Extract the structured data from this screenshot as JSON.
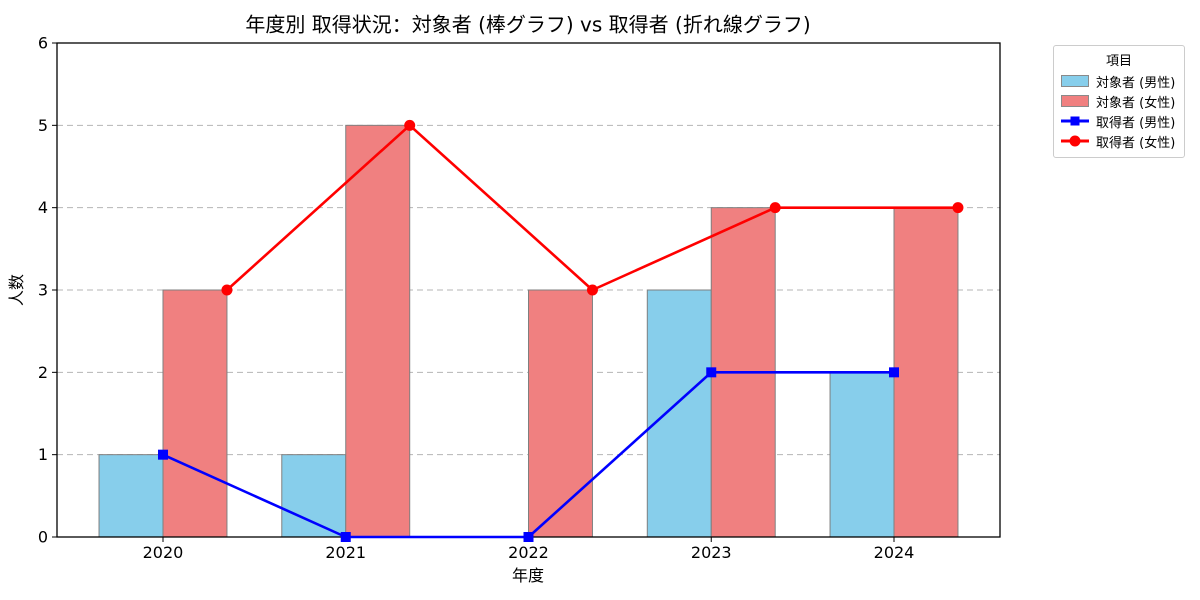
{
  "chart_data": {
    "type": "combo-bar-line",
    "title": "年度別 取得状況：対象者 (棒グラフ) vs 取得者 (折れ線グラフ)",
    "xlabel": "年度",
    "ylabel": "人数",
    "legend_title": "項目",
    "legend_position": "outside upper right",
    "categories": [
      "2020",
      "2021",
      "2022",
      "2023",
      "2024"
    ],
    "ylim": [
      0,
      6
    ],
    "yticks": [
      0,
      1,
      2,
      3,
      4,
      5,
      6
    ],
    "grid": {
      "axis": "y",
      "style": "dashed",
      "color": "#b5b5b5"
    },
    "bar_width": 0.35,
    "bar_edge_color": "#7f7f7f",
    "axes_color": "#000000",
    "series": [
      {
        "kind": "bar",
        "name": "対象者 (男性)",
        "values": [
          1,
          1,
          0,
          3,
          2
        ],
        "color": "#87CEEB",
        "x_offset": -0.175
      },
      {
        "kind": "bar",
        "name": "対象者 (女性)",
        "values": [
          3,
          5,
          3,
          4,
          4
        ],
        "color": "#F08080",
        "x_offset": 0.175
      },
      {
        "kind": "line",
        "name": "取得者 (男性)",
        "values": [
          1,
          0,
          0,
          2,
          2
        ],
        "color": "#0000FF",
        "marker": "square",
        "x_offset": 0
      },
      {
        "kind": "line",
        "name": "取得者 (女性)",
        "values": [
          3,
          5,
          3,
          4,
          4
        ],
        "color": "#FF0000",
        "marker": "circle",
        "x_offset": 0.35
      }
    ]
  }
}
